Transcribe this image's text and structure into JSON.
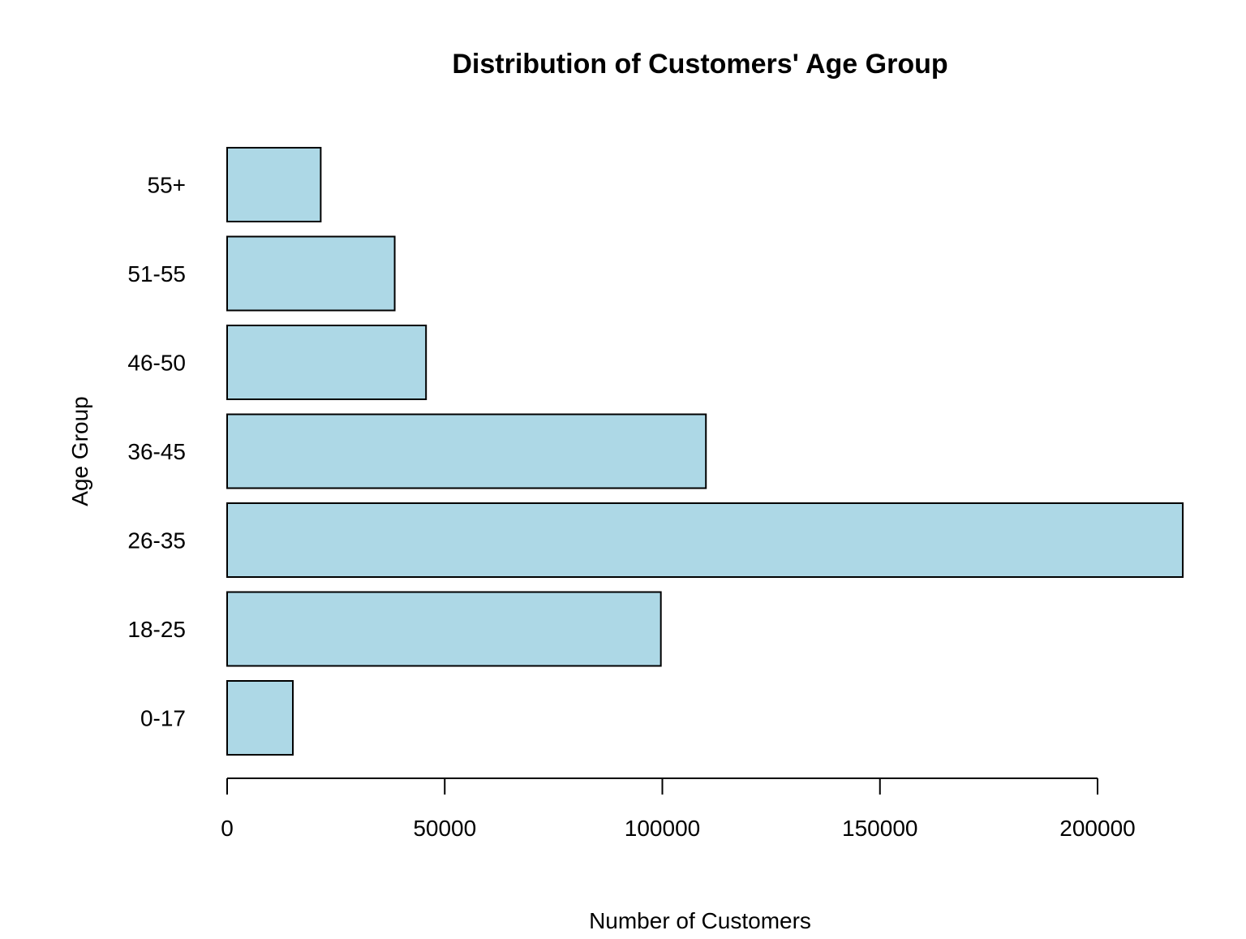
{
  "chart_data": {
    "type": "bar",
    "orientation": "horizontal",
    "title": "Distribution of Customers' Age Group",
    "xlabel": "Number of Customers",
    "ylabel": "Age Group",
    "categories": [
      "0-17",
      "18-25",
      "26-35",
      "36-45",
      "46-50",
      "51-55",
      "55+"
    ],
    "values": [
      15102,
      99660,
      219587,
      110013,
      45701,
      38501,
      21504
    ],
    "xlim": [
      0,
      200000
    ],
    "xticks": [
      0,
      50000,
      100000,
      150000,
      200000
    ],
    "xtick_labels": [
      "0",
      "50000",
      "100000",
      "150000",
      "200000"
    ],
    "grid": false,
    "legend": "none",
    "colors": {
      "bar_fill": "#add8e6",
      "bar_stroke": "#000000"
    }
  }
}
